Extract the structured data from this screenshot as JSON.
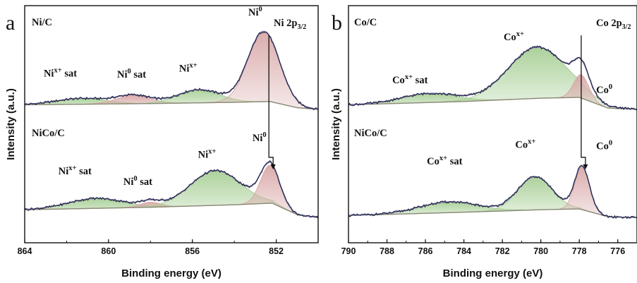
{
  "figure": {
    "shared_x_label": "Binding energy (eV)",
    "shared_y_label": "Intensity (a.u.)"
  },
  "chart_data": [
    {
      "type": "line",
      "panel_letter": "a",
      "corner_title": [
        "Ni 2p",
        "3/2"
      ],
      "xlabel": "Binding energy (eV)",
      "ylabel": "Intensity (a.u.)",
      "xlim": [
        864,
        850
      ],
      "x_reversed": true,
      "x_ticks": [
        864,
        860,
        856,
        852
      ],
      "y_ticks_labeled": false,
      "grid": false,
      "colors": {
        "data": "#2b2b4a",
        "fit": "#7f7fb0",
        "background": "#8a8a78",
        "Ni0": "#d9a8a8",
        "Nix+": "#a8cf96",
        "Ni0 sat": "#d9a8a8",
        "Nix+ sat": "#a8cf96"
      },
      "spectra": [
        {
          "sample": "Ni/C",
          "base": 0.06,
          "background": {
            "x": [
              864,
              858,
              854,
              852.3,
              851,
              850
            ],
            "y": [
              0.06,
              0.075,
              0.09,
              0.1,
              0.025,
              0.005
            ]
          },
          "components": [
            {
              "name": "Nix+ sat",
              "center": 861.3,
              "amp": 0.07,
              "width": 1.2,
              "color": "#a8cf96"
            },
            {
              "name": "Ni0 sat",
              "center": 858.8,
              "amp": 0.1,
              "width": 0.8,
              "color": "#d9a8a8"
            },
            {
              "name": "Nix+",
              "center": 855.7,
              "amp": 0.16,
              "width": 1.0,
              "color": "#a8cf96"
            },
            {
              "name": "Ni0",
              "center": 852.6,
              "amp": 0.85,
              "width": 0.75,
              "color": "#d9a8a8"
            }
          ],
          "annotations": [
            {
              "text": "Nix+ sat",
              "main": "Ni",
              "sup": "x+",
              "tail": " sat",
              "x": 862.3,
              "y": 0.46
            },
            {
              "text": "Ni0 sat",
              "main": "Ni",
              "sup": "0",
              "tail": " sat",
              "x": 858.9,
              "y": 0.45
            },
            {
              "text": "Nix+",
              "main": "Ni",
              "sup": "x+",
              "tail": "",
              "x": 856.2,
              "y": 0.52
            },
            {
              "text": "Ni0",
              "main": "Ni",
              "sup": "0",
              "tail": "",
              "x": 853.0,
              "y": 1.2
            }
          ]
        },
        {
          "sample": "NiCo/C",
          "base": -1.25,
          "background": {
            "x": [
              864,
              858,
              854,
              852.2,
              851,
              850
            ],
            "y": [
              0.1,
              0.13,
              0.16,
              0.18,
              0.04,
              0.005
            ]
          },
          "components": [
            {
              "name": "Nix+ sat",
              "center": 860.6,
              "amp": 0.12,
              "width": 1.3,
              "color": "#a8cf96"
            },
            {
              "name": "Ni0 sat",
              "center": 858.0,
              "amp": 0.06,
              "width": 0.5,
              "color": "#d9a8a8"
            },
            {
              "name": "Nix+",
              "center": 854.9,
              "amp": 0.42,
              "width": 1.2,
              "color": "#a8cf96"
            },
            {
              "name": "Ni0",
              "center": 852.3,
              "amp": 0.46,
              "width": 0.45,
              "color": "#d9a8a8"
            }
          ],
          "annotations": [
            {
              "text": "Nix+ sat",
              "main": "Ni",
              "sup": "x+",
              "tail": " sat",
              "x": 861.6,
              "y": -0.72
            },
            {
              "text": "Ni0 sat",
              "main": "Ni",
              "sup": "0",
              "tail": " sat",
              "x": 858.6,
              "y": -0.85
            },
            {
              "text": "Nix+",
              "main": "Ni",
              "sup": "x+",
              "tail": "",
              "x": 855.3,
              "y": -0.52
            },
            {
              "text": "Ni0",
              "main": "Ni",
              "sup": "0",
              "tail": "",
              "x": 852.8,
              "y": -0.32
            }
          ]
        }
      ]
    },
    {
      "type": "line",
      "panel_letter": "b",
      "corner_title": [
        "Co 2p",
        "3/2"
      ],
      "xlabel": "Binding energy (eV)",
      "ylabel": "Intensity (a.u.)",
      "xlim": [
        790,
        775
      ],
      "x_reversed": true,
      "x_ticks": [
        790,
        788,
        786,
        784,
        782,
        780,
        778,
        776
      ],
      "y_ticks_labeled": false,
      "grid": false,
      "colors": {
        "data": "#2b2b4a",
        "fit": "#7f7fb0",
        "background": "#8a8a78",
        "Co0": "#d9a8a8",
        "Cox+": "#a8cf96",
        "Cox+ sat": "#a8cf96"
      },
      "spectra": [
        {
          "sample": "Co/C",
          "base": 0.06,
          "background": {
            "x": [
              790,
              784,
              780,
              778,
              776.5,
              775
            ],
            "y": [
              0.06,
              0.1,
              0.14,
              0.15,
              0.02,
              0.005
            ]
          },
          "components": [
            {
              "name": "Cox+ sat",
              "center": 785.8,
              "amp": 0.11,
              "width": 1.4,
              "color": "#a8cf96"
            },
            {
              "name": "Cox+",
              "center": 780.2,
              "amp": 0.62,
              "width": 1.5,
              "color": "#a8cf96"
            },
            {
              "name": "Co0",
              "center": 777.9,
              "amp": 0.28,
              "width": 0.4,
              "color": "#d9a8a8"
            }
          ],
          "annotations": [
            {
              "text": "Cox+ sat",
              "main": "Co",
              "sup": "x+",
              "tail": " sat",
              "x": 786.8,
              "y": 0.38
            },
            {
              "text": "Cox+",
              "main": "Co",
              "sup": "x+",
              "tail": "",
              "x": 781.4,
              "y": 0.9
            },
            {
              "text": "Co0",
              "main": "Co",
              "sup": "0",
              "tail": "",
              "x": 776.7,
              "y": 0.26
            }
          ]
        },
        {
          "sample": "NiCo/C",
          "base": -1.25,
          "background": {
            "x": [
              790,
              784,
              780,
              778,
              776.5,
              775
            ],
            "y": [
              0.03,
              0.07,
              0.1,
              0.11,
              0.015,
              0.005
            ]
          },
          "components": [
            {
              "name": "Cox+ sat",
              "center": 784.8,
              "amp": 0.13,
              "width": 1.5,
              "color": "#a8cf96"
            },
            {
              "name": "Cox+",
              "center": 780.3,
              "amp": 0.4,
              "width": 0.9,
              "color": "#a8cf96"
            },
            {
              "name": "Co0",
              "center": 777.85,
              "amp": 0.52,
              "width": 0.38,
              "color": "#d9a8a8"
            }
          ],
          "annotations": [
            {
              "text": "Cox+ sat",
              "main": "Co",
              "sup": "x+",
              "tail": " sat",
              "x": 785.0,
              "y": -0.6
            },
            {
              "text": "Cox+",
              "main": "Co",
              "sup": "x+",
              "tail": "",
              "x": 780.8,
              "y": -0.4
            },
            {
              "text": "Co0",
              "main": "Co",
              "sup": "0",
              "tail": "",
              "x": 776.7,
              "y": -0.42
            }
          ]
        }
      ]
    }
  ]
}
